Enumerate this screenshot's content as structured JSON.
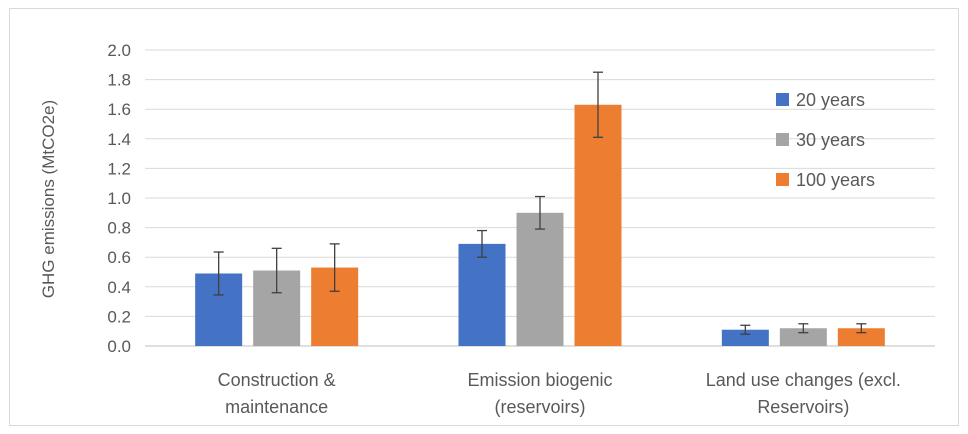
{
  "chart_data": {
    "type": "bar",
    "title": "",
    "xlabel": "",
    "ylabel": "GHG emissions (MtCO2e)",
    "ylim": [
      0,
      2.0
    ],
    "yticks": [
      "0.0",
      "0.2",
      "0.4",
      "0.6",
      "0.8",
      "1.0",
      "1.2",
      "1.4",
      "1.6",
      "1.8",
      "2.0"
    ],
    "grid": true,
    "legend_position": "top-right",
    "categories": [
      [
        "Construction &",
        "maintenance"
      ],
      [
        "Emission biogenic",
        "(reservoirs)"
      ],
      [
        "Land use changes (excl.",
        "Reservoirs)"
      ]
    ],
    "series": [
      {
        "name": "20 years",
        "color": "#4472c4",
        "values": [
          0.49,
          0.69,
          0.11
        ],
        "errors": [
          0.145,
          0.09,
          0.03
        ]
      },
      {
        "name": "30 years",
        "color": "#a5a5a5",
        "values": [
          0.51,
          0.9,
          0.12
        ],
        "errors": [
          0.15,
          0.11,
          0.03
        ]
      },
      {
        "name": "100 years",
        "color": "#ed7d31",
        "values": [
          0.53,
          1.63,
          0.12
        ],
        "errors": [
          0.16,
          0.22,
          0.03
        ]
      }
    ]
  }
}
